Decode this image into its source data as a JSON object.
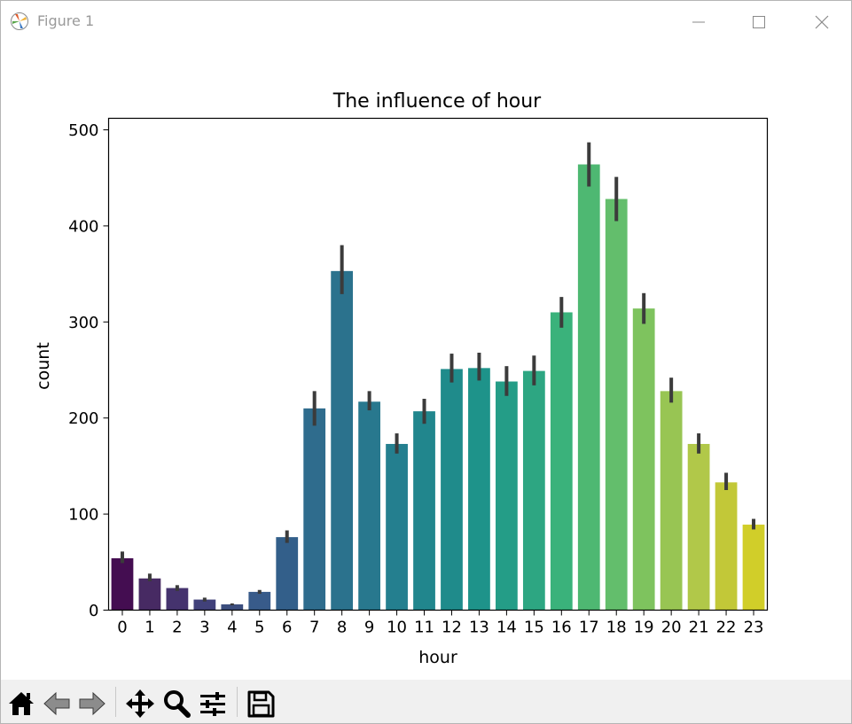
{
  "window": {
    "title": "Figure 1",
    "icons": [
      "matplotlib-icon",
      "minimize-icon",
      "maximize-icon",
      "close-icon"
    ]
  },
  "toolbar": {
    "buttons": [
      "home-icon",
      "back-icon",
      "forward-icon",
      "pan-icon",
      "zoom-icon",
      "configure-subplots-icon",
      "save-icon"
    ]
  },
  "chart_data": {
    "type": "bar",
    "title": "The influence of hour",
    "xlabel": "hour",
    "ylabel": "count",
    "ylim": [
      0,
      512
    ],
    "yticks": [
      0,
      100,
      200,
      300,
      400,
      500
    ],
    "categories": [
      "0",
      "1",
      "2",
      "3",
      "4",
      "5",
      "6",
      "7",
      "8",
      "9",
      "10",
      "11",
      "12",
      "13",
      "14",
      "15",
      "16",
      "17",
      "18",
      "19",
      "20",
      "21",
      "22",
      "23"
    ],
    "values": [
      54,
      33,
      23,
      11,
      6,
      19,
      76,
      210,
      353,
      217,
      173,
      207,
      251,
      252,
      238,
      249,
      310,
      464,
      428,
      314,
      228,
      173,
      133,
      89
    ],
    "error_low": [
      49,
      30,
      20,
      9,
      5,
      17,
      70,
      192,
      329,
      208,
      163,
      194,
      237,
      239,
      223,
      234,
      294,
      441,
      405,
      298,
      216,
      163,
      125,
      84
    ],
    "error_high": [
      61,
      38,
      26,
      13,
      7,
      21,
      83,
      228,
      380,
      228,
      184,
      220,
      267,
      268,
      254,
      265,
      326,
      487,
      451,
      330,
      242,
      184,
      143,
      95
    ],
    "colors": [
      "#440d51",
      "#472a63",
      "#45336e",
      "#41417a",
      "#3c4e7e",
      "#385b8a",
      "#335f8a",
      "#2f6c8d",
      "#2b728d",
      "#28788e",
      "#247f8f",
      "#21868d",
      "#1f8b8b",
      "#1e938a",
      "#249d87",
      "#2da682",
      "#3ab27b",
      "#4eb872",
      "#63be6c",
      "#7ec35e",
      "#98c553",
      "#b1c849",
      "#c2c838",
      "#d1ce29"
    ],
    "grid": false,
    "error_bar_color": "#3b3b3b"
  }
}
